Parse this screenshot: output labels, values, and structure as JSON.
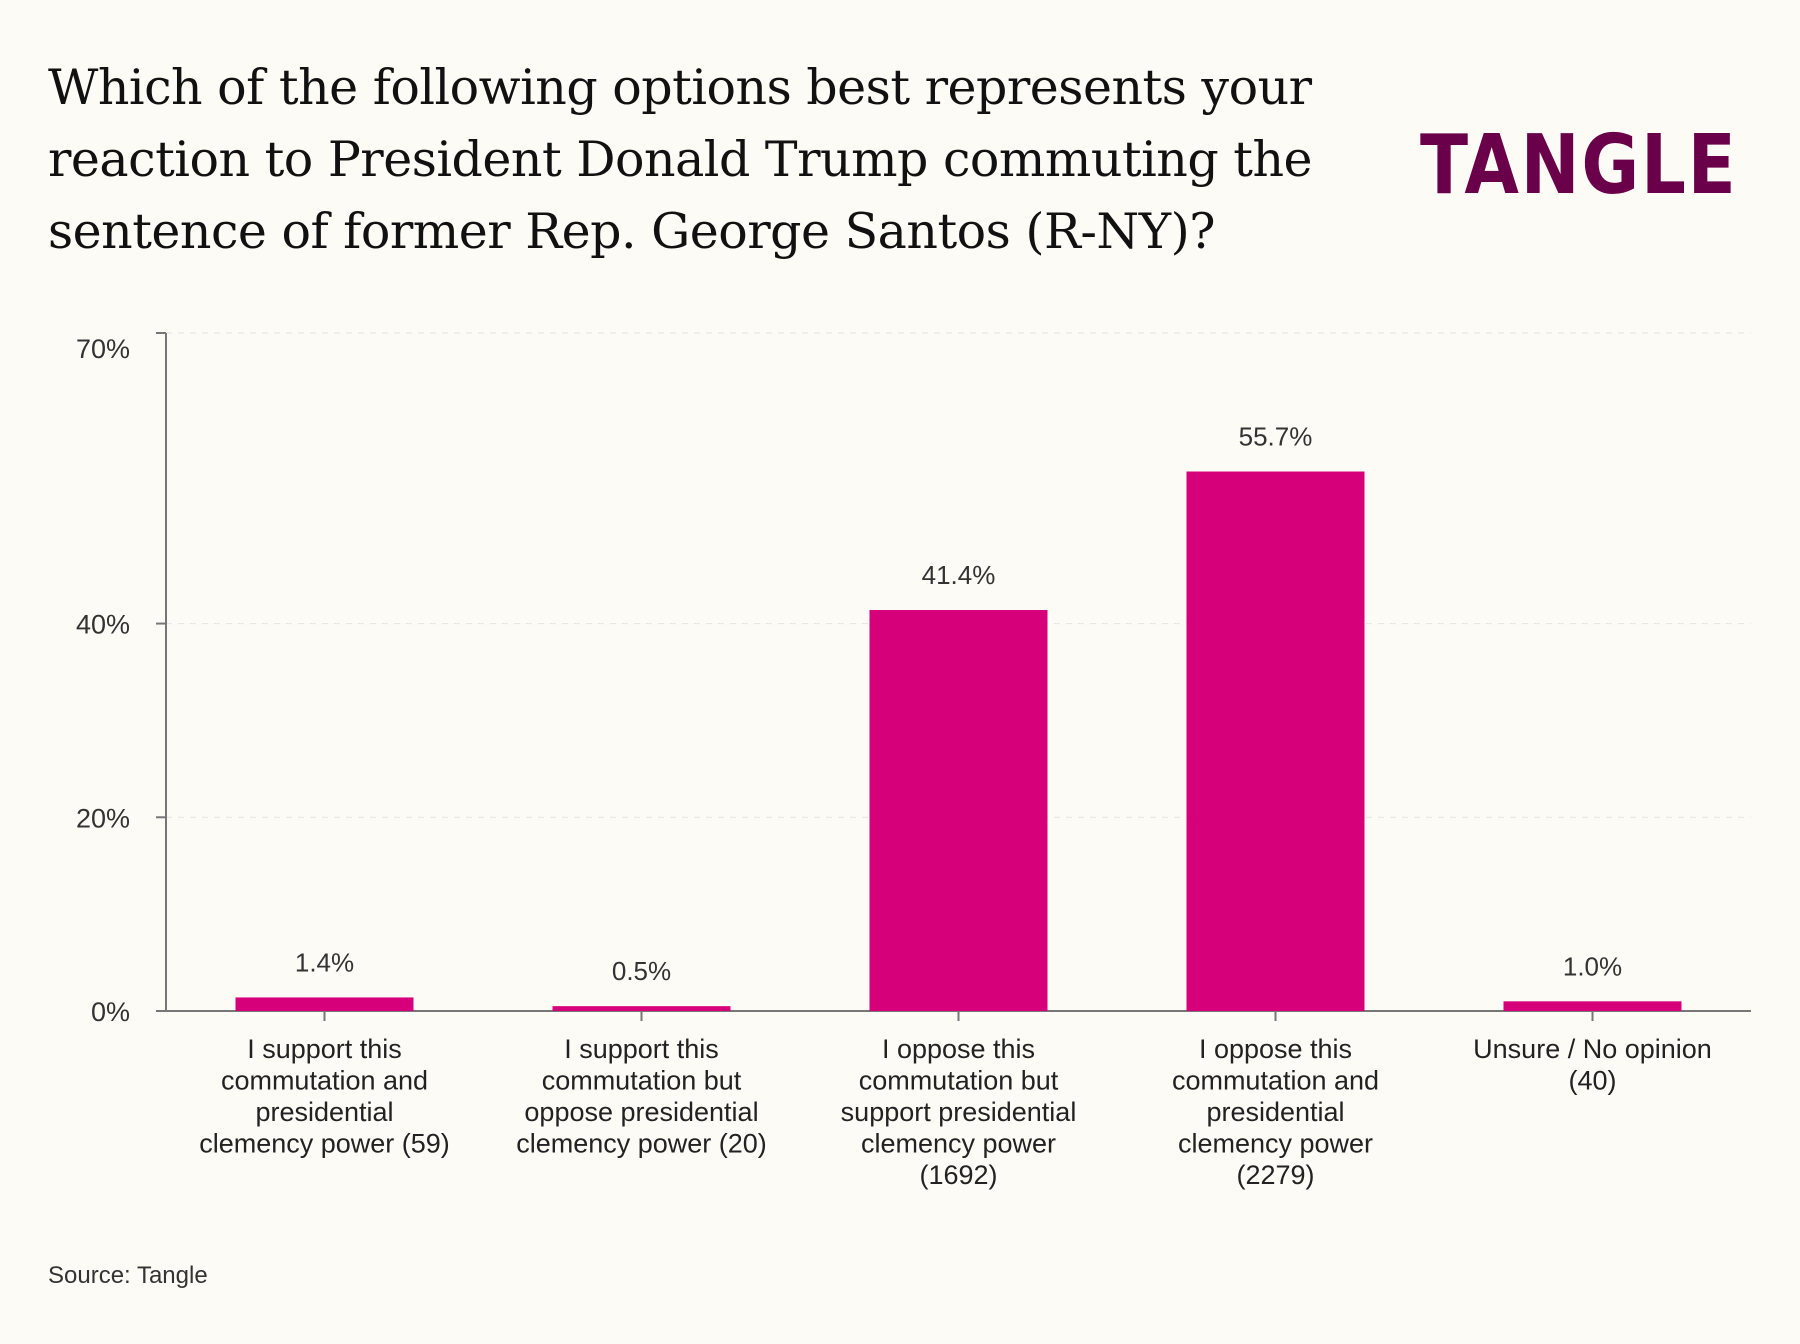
{
  "chart_data": {
    "type": "bar",
    "title": "Which of the following options best represents your reaction to President Donald Trump commuting the sentence of former Rep. George Santos (R-NY)?",
    "categories": [
      [
        "I support this",
        "commutation and",
        "presidential",
        "clemency power (59)"
      ],
      [
        "I support this",
        "commutation but",
        "oppose presidential",
        "clemency power (20)"
      ],
      [
        "I oppose this",
        "commutation but",
        "support presidential",
        "clemency power",
        "(1692)"
      ],
      [
        "I oppose this",
        "commutation and",
        "presidential",
        "clemency power",
        "(2279)"
      ],
      [
        "Unsure / No opinion",
        "(40)"
      ]
    ],
    "values": [
      1.4,
      0.5,
      41.4,
      55.7,
      1.0
    ],
    "data_labels": [
      "1.4%",
      "0.5%",
      "41.4%",
      "55.7%",
      "1.0%"
    ],
    "yticks": [
      0,
      20,
      40,
      70
    ],
    "ytick_labels": [
      "0%",
      "20%",
      "40%",
      "70%"
    ],
    "ylim": [
      0,
      70
    ],
    "xlabel": "",
    "ylabel": "",
    "grid": "horizontal dashed",
    "bar_color": "#d6007a"
  },
  "logo_text": "TANGLE",
  "logo_color": "#6b004a",
  "source": "Source: Tangle"
}
